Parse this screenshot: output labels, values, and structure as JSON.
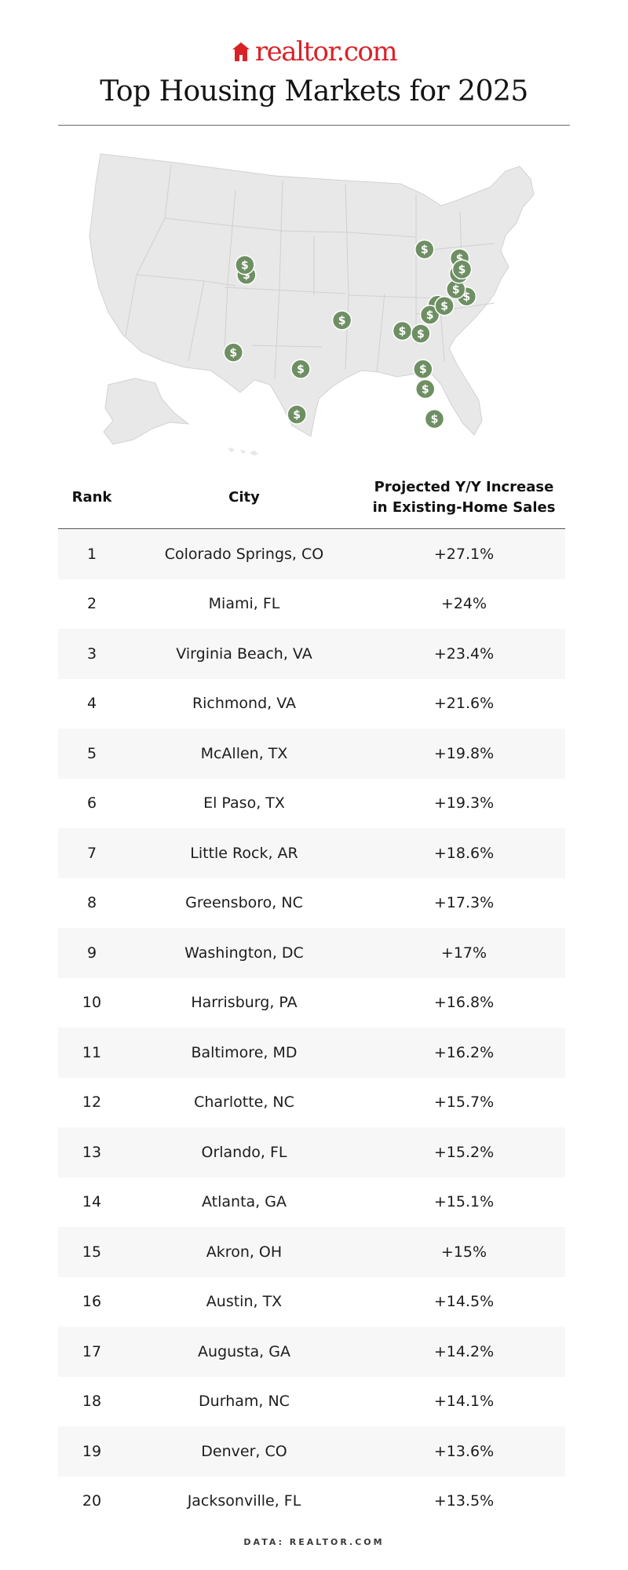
{
  "brand": {
    "logo_text": "realtor",
    "logo_suffix": ".com",
    "brand_color": "#d92228"
  },
  "title": "Top Housing Markets for 2025",
  "marker_color": "#6e8f63",
  "marker_icon": "dollar-icon",
  "table": {
    "headers": {
      "rank": "Rank",
      "city": "City",
      "pct_line1": "Projected Y/Y Increase",
      "pct_line2": "in Existing-Home Sales"
    }
  },
  "chart_data": {
    "type": "table",
    "columns": [
      "Rank",
      "City",
      "Projected Y/Y Increase in Existing-Home Sales"
    ],
    "rows": [
      {
        "rank": "1",
        "city": "Colorado Springs, CO",
        "pct": "+27.1%",
        "value": 27.1,
        "lon": -104.8,
        "lat": 38.8
      },
      {
        "rank": "2",
        "city": "Miami, FL",
        "pct": "+24%",
        "value": 24.0,
        "lon": -80.2,
        "lat": 25.8
      },
      {
        "rank": "3",
        "city": "Virginia Beach, VA",
        "pct": "+23.4%",
        "value": 23.4,
        "lon": -76.0,
        "lat": 36.85
      },
      {
        "rank": "4",
        "city": "Richmond, VA",
        "pct": "+21.6%",
        "value": 21.6,
        "lon": -77.4,
        "lat": 37.5
      },
      {
        "rank": "5",
        "city": "McAllen, TX",
        "pct": "+19.8%",
        "value": 19.8,
        "lon": -98.2,
        "lat": 26.2
      },
      {
        "rank": "6",
        "city": "El Paso, TX",
        "pct": "+19.3%",
        "value": 19.3,
        "lon": -106.5,
        "lat": 31.8
      },
      {
        "rank": "7",
        "city": "Little Rock, AR",
        "pct": "+18.6%",
        "value": 18.6,
        "lon": -92.3,
        "lat": 34.7
      },
      {
        "rank": "8",
        "city": "Greensboro, NC",
        "pct": "+17.3%",
        "value": 17.3,
        "lon": -79.8,
        "lat": 36.1
      },
      {
        "rank": "9",
        "city": "Washington, DC",
        "pct": "+17%",
        "value": 17.0,
        "lon": -77.0,
        "lat": 38.9
      },
      {
        "rank": "10",
        "city": "Harrisburg, PA",
        "pct": "+16.8%",
        "value": 16.8,
        "lon": -76.9,
        "lat": 40.3
      },
      {
        "rank": "11",
        "city": "Baltimore, MD",
        "pct": "+16.2%",
        "value": 16.2,
        "lon": -76.6,
        "lat": 39.3
      },
      {
        "rank": "12",
        "city": "Charlotte, NC",
        "pct": "+15.7%",
        "value": 15.7,
        "lon": -80.8,
        "lat": 35.2
      },
      {
        "rank": "13",
        "city": "Orlando, FL",
        "pct": "+15.2%",
        "value": 15.2,
        "lon": -81.4,
        "lat": 28.5
      },
      {
        "rank": "14",
        "city": "Atlanta, GA",
        "pct": "+15.1%",
        "value": 15.1,
        "lon": -84.4,
        "lat": 33.75
      },
      {
        "rank": "15",
        "city": "Akron, OH",
        "pct": "+15%",
        "value": 15.0,
        "lon": -81.5,
        "lat": 41.1
      },
      {
        "rank": "16",
        "city": "Austin, TX",
        "pct": "+14.5%",
        "value": 14.5,
        "lon": -97.7,
        "lat": 30.3
      },
      {
        "rank": "17",
        "city": "Augusta, GA",
        "pct": "+14.2%",
        "value": 14.2,
        "lon": -82.0,
        "lat": 33.5
      },
      {
        "rank": "18",
        "city": "Durham, NC",
        "pct": "+14.1%",
        "value": 14.1,
        "lon": -78.9,
        "lat": 36.0
      },
      {
        "rank": "19",
        "city": "Denver, CO",
        "pct": "+13.6%",
        "value": 13.6,
        "lon": -105.0,
        "lat": 39.7
      },
      {
        "rank": "20",
        "city": "Jacksonville, FL",
        "pct": "+13.5%",
        "value": 13.5,
        "lon": -81.7,
        "lat": 30.3
      }
    ]
  },
  "footer": "DATA: REALTOR.COM"
}
